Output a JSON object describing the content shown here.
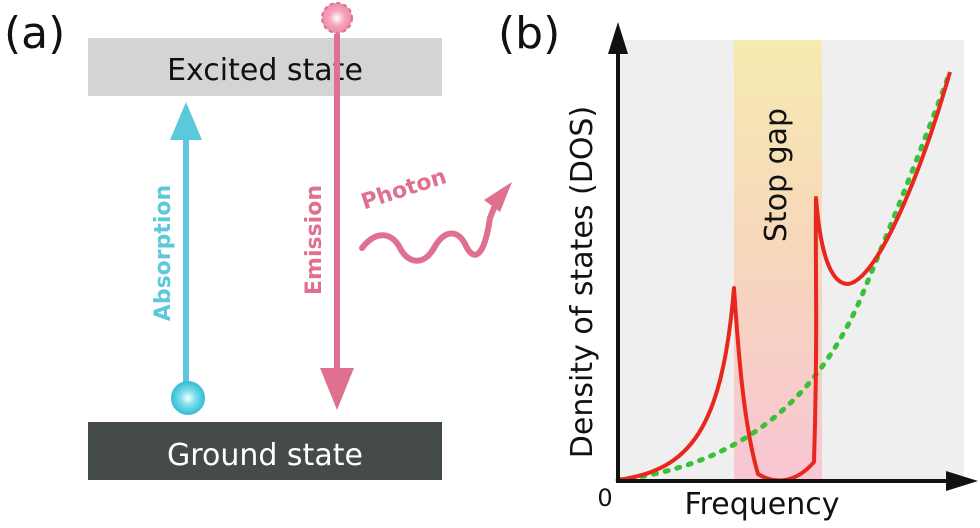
{
  "panel_a": {
    "label": "(a)",
    "excited_state": "Excited state",
    "ground_state": "Ground state",
    "absorption": "Absorption",
    "emission": "Emission",
    "photon": "Photon"
  },
  "panel_b": {
    "label": "(b)",
    "stop_gap": "Stop gap",
    "origin": "0"
  },
  "colors": {
    "absorption": "#5cc8dc",
    "emission": "#e07090",
    "excited_band": "#d3d5d4",
    "ground_band": "#454b49",
    "dos_curve": "#e8271f",
    "reference_curve": "#39c13a",
    "gap_top": "#f6e9a8",
    "gap_bottom": "#f8c6d4"
  },
  "chart_data": {
    "type": "line",
    "title": "",
    "xlabel": "Frequency",
    "ylabel": "Density of states (DOS)",
    "x_ticks": [
      "0"
    ],
    "stop_gap": {
      "label": "Stop gap"
    },
    "series": []
  }
}
